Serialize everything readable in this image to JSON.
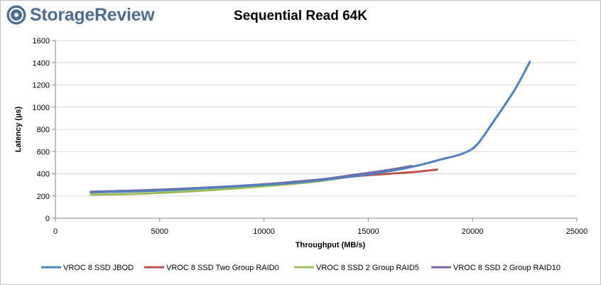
{
  "brand": {
    "name": "StorageReview"
  },
  "chart_data": {
    "type": "line",
    "title": "Sequential Read 64K",
    "xlabel": "Throughput (MB/s)",
    "ylabel": "Latency (µs)",
    "xlim": [
      0,
      25000
    ],
    "ylim": [
      0,
      1600
    ],
    "xticks": [
      0,
      5000,
      10000,
      15000,
      20000,
      25000
    ],
    "yticks": [
      0,
      200,
      400,
      600,
      800,
      1000,
      1200,
      1400,
      1600
    ],
    "grid": "horizontal",
    "legend_position": "bottom",
    "series": [
      {
        "name": "VROC 8 SSD JBOD",
        "color": "#4f81bd",
        "x": [
          1700,
          3500,
          6000,
          9000,
          11500,
          13500,
          15200,
          16500,
          17500,
          18500,
          19500,
          20200,
          21000,
          22000,
          22750
        ],
        "y": [
          235,
          240,
          258,
          290,
          320,
          360,
          400,
          440,
          480,
          530,
          580,
          660,
          870,
          1150,
          1410
        ]
      },
      {
        "name": "VROC 8 SSD Two Group RAID0",
        "color": "#c0504d",
        "x": [
          1700,
          4000,
          7000,
          10000,
          12500,
          14500,
          16000,
          17300,
          18300
        ],
        "y": [
          232,
          245,
          270,
          305,
          345,
          380,
          400,
          418,
          438
        ]
      },
      {
        "name": "VROC 8 SSD 2 Group RAID5",
        "color": "#9bbb59",
        "x": [
          1700,
          4000,
          7000,
          10000,
          12500,
          14500,
          16000,
          17000
        ],
        "y": [
          212,
          220,
          248,
          288,
          330,
          385,
          430,
          470
        ]
      },
      {
        "name": "VROC 8 SSD 2 Group RAID10",
        "color": "#8064a2",
        "x": [
          1700,
          4000,
          7000,
          10000,
          12500,
          14500,
          16000,
          17100
        ],
        "y": [
          238,
          250,
          273,
          305,
          345,
          395,
          435,
          470
        ]
      }
    ]
  }
}
